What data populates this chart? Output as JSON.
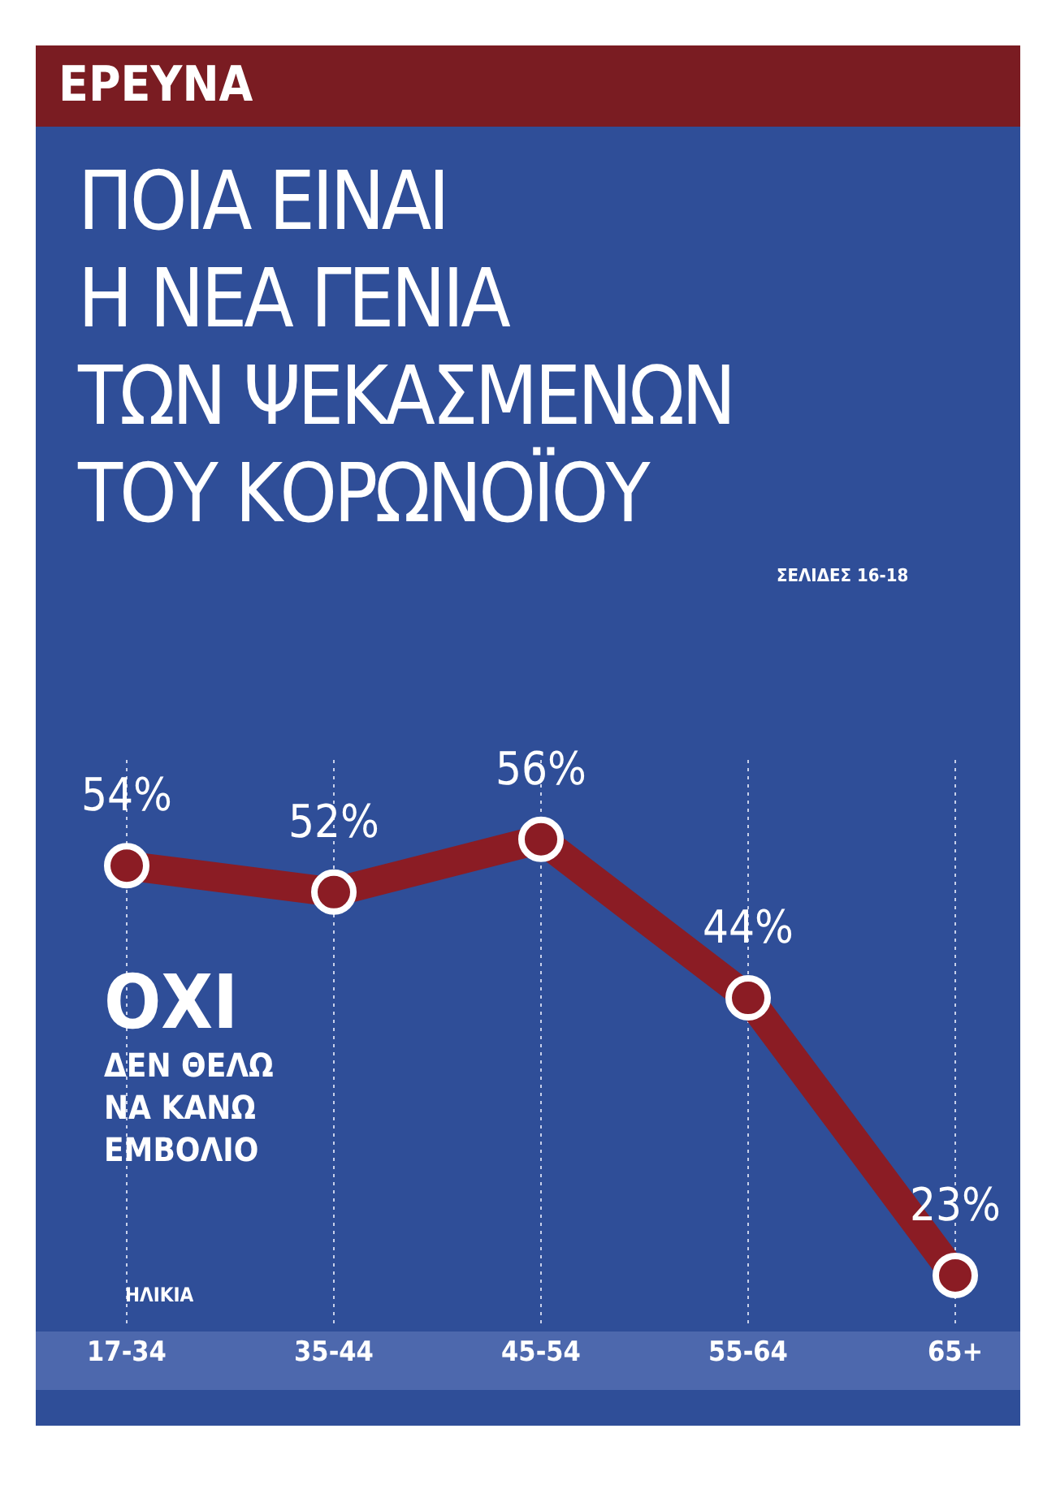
{
  "chart_data": {
    "type": "line",
    "title": "ΠΟΙΑ ΕΙΝΑΙ\nΗ ΝΕΑ ΓΕΝΙΑ\nΤΩΝ ΨΕΚΑΣΜΕΝΩΝ\nΤΟΥ ΚΟΡΩΝΟΪΟΥ",
    "xlabel": "ΗΛΙΚΙΑ",
    "annotations": [
      "ΕΡΕΥΝΑ",
      "ΣΕΛΙΔΕΣ 16-18",
      "ΟΧΙ\nΔΕΝ ΘΕΛΩ\nΝΑ ΚΑΝΩ\nΕΜΒΟΛΙΟ"
    ],
    "categories": [
      "17-34",
      "35-44",
      "45-54",
      "55-64",
      "65+"
    ],
    "series": [
      {
        "color": "#8b1c24",
        "values": [
          54,
          52,
          56,
          44,
          23
        ],
        "value_labels": [
          "54%",
          "52%",
          "56%",
          "44%",
          "23%"
        ]
      }
    ],
    "marker": "circle",
    "grid": "x"
  }
}
